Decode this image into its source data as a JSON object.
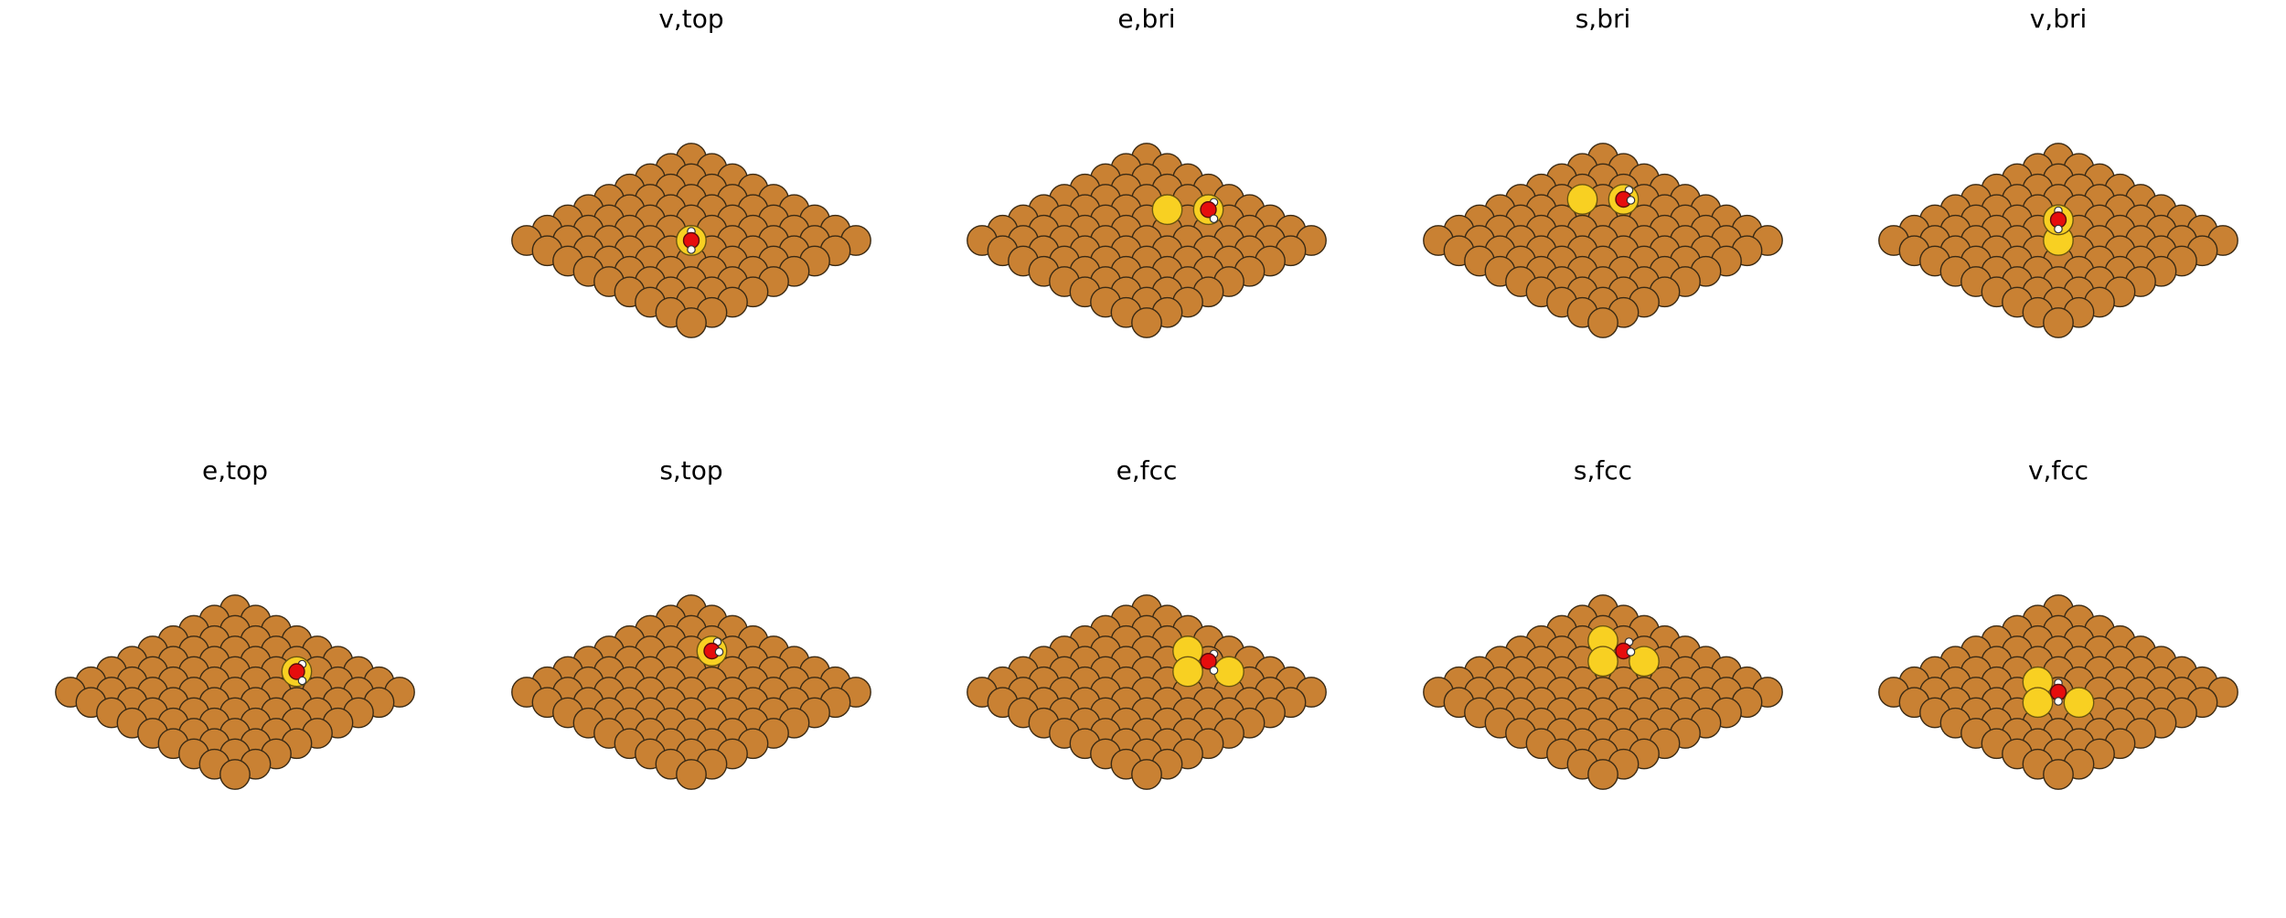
{
  "figure": {
    "panels": [
      {
        "id": "v-top",
        "title": "v,top",
        "site": "top",
        "anchor": [
          0,
          0
        ],
        "arrangement": "vertical"
      },
      {
        "id": "e-bri",
        "title": "e,bri",
        "site": "bridge",
        "anchor": [
          3,
          -3
        ],
        "arrangement": "horizontal"
      },
      {
        "id": "s-bri",
        "title": "s,bri",
        "site": "bridge",
        "anchor": [
          1,
          -4
        ],
        "arrangement": "tilted"
      },
      {
        "id": "v-bri",
        "title": "v,bri",
        "site": "bridge",
        "anchor": [
          0,
          0
        ],
        "arrangement": "vertical"
      },
      {
        "id": "e-top",
        "title": "e,top",
        "site": "top",
        "anchor": [
          3,
          -2
        ],
        "arrangement": "horizontal"
      },
      {
        "id": "s-top",
        "title": "s,top",
        "site": "top",
        "anchor": [
          1,
          -4
        ],
        "arrangement": "tilted"
      },
      {
        "id": "e-fcc",
        "title": "e,fcc",
        "site": "fcc",
        "anchor": [
          3,
          -3
        ],
        "arrangement": "horizontal"
      },
      {
        "id": "s-fcc",
        "title": "s,fcc",
        "site": "fcc",
        "anchor": [
          1,
          -4
        ],
        "arrangement": "tilted"
      },
      {
        "id": "v-fcc",
        "title": "v,fcc",
        "site": "fcc",
        "anchor": [
          0,
          0
        ],
        "arrangement": "vertical"
      }
    ]
  },
  "colors": {
    "surface_atom": "#C98133",
    "binding_atom": "#F8D022",
    "oxygen": "#E60D0D",
    "hydrogen": "#FFFFFF",
    "background": "#FFFFFF"
  },
  "legend_icons": {
    "surface": "copper-atom-icon",
    "binding": "binding-site-atom-icon",
    "oxygen": "oxygen-atom-icon",
    "hydrogen": "hydrogen-atom-icon"
  }
}
